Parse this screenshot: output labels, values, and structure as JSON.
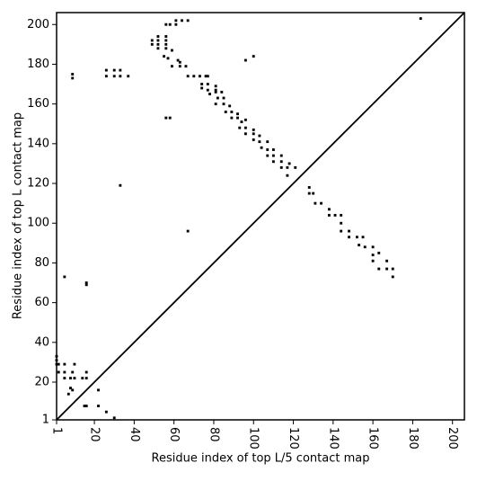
{
  "chart_data": {
    "type": "scatter",
    "xlabel": "Residue index of top L/5 contact map",
    "ylabel": "Residue index of top L contact map",
    "color": "#000000",
    "xlim": [
      1,
      206
    ],
    "ylim": [
      1,
      206
    ],
    "xticks": [
      1,
      20,
      40,
      60,
      80,
      100,
      120,
      140,
      160,
      180,
      200
    ],
    "yticks": [
      1,
      20,
      40,
      60,
      80,
      100,
      120,
      140,
      160,
      180,
      200
    ],
    "x": [
      184,
      61,
      64,
      67,
      61,
      56,
      58,
      49,
      49,
      52,
      52,
      52,
      52,
      56,
      56,
      56,
      56,
      59,
      55,
      57,
      62,
      63,
      59,
      63,
      66,
      96,
      100,
      9,
      9,
      26,
      26,
      30,
      30,
      33,
      33,
      37,
      67,
      70,
      73,
      76,
      77,
      74,
      74,
      77,
      77,
      78,
      81,
      81,
      81,
      84,
      82,
      85,
      81,
      85,
      86,
      88,
      89,
      89,
      92,
      92,
      94,
      96,
      93,
      96,
      96,
      100,
      100,
      100,
      103,
      103,
      104,
      107,
      107,
      107,
      110,
      110,
      110,
      114,
      114,
      114,
      117,
      118,
      117,
      121,
      56,
      58,
      33,
      128,
      128,
      130,
      131,
      134,
      138,
      138,
      141,
      144,
      144,
      144,
      148,
      148,
      152,
      155,
      153,
      156,
      160,
      160,
      160,
      163,
      163,
      167,
      167,
      170,
      170,
      67,
      5,
      16,
      16,
      1,
      1,
      1,
      2,
      5,
      5,
      9,
      10,
      5,
      8,
      10,
      8,
      7,
      9,
      14,
      16,
      16,
      2,
      22,
      15,
      16,
      22,
      26,
      30
    ],
    "y": [
      203,
      202,
      202,
      202,
      200,
      200,
      200,
      190,
      192,
      188,
      190,
      192,
      194,
      188,
      190,
      192,
      194,
      187,
      184,
      183,
      182,
      181,
      179,
      179,
      179,
      182,
      184,
      175,
      173,
      177,
      174,
      177,
      174,
      177,
      174,
      174,
      174,
      174,
      174,
      174,
      174,
      170,
      168,
      170,
      167,
      165,
      167,
      169,
      166,
      166,
      163,
      163,
      160,
      160,
      156,
      159,
      156,
      153,
      155,
      153,
      151,
      152,
      148,
      148,
      145,
      147,
      145,
      142,
      144,
      141,
      138,
      141,
      137,
      134,
      137,
      134,
      131,
      134,
      131,
      128,
      128,
      130,
      124,
      128,
      153,
      153,
      119,
      118,
      115,
      115,
      110,
      110,
      107,
      104,
      104,
      104,
      100,
      96,
      96,
      93,
      93,
      93,
      89,
      88,
      88,
      84,
      81,
      85,
      77,
      81,
      77,
      77,
      73,
      96,
      73,
      70,
      69,
      33,
      31,
      29,
      29,
      29,
      25,
      25,
      29,
      22,
      22,
      22,
      17,
      14,
      16,
      22,
      22,
      25,
      25,
      16,
      8,
      8,
      8,
      5,
      2
    ]
  }
}
